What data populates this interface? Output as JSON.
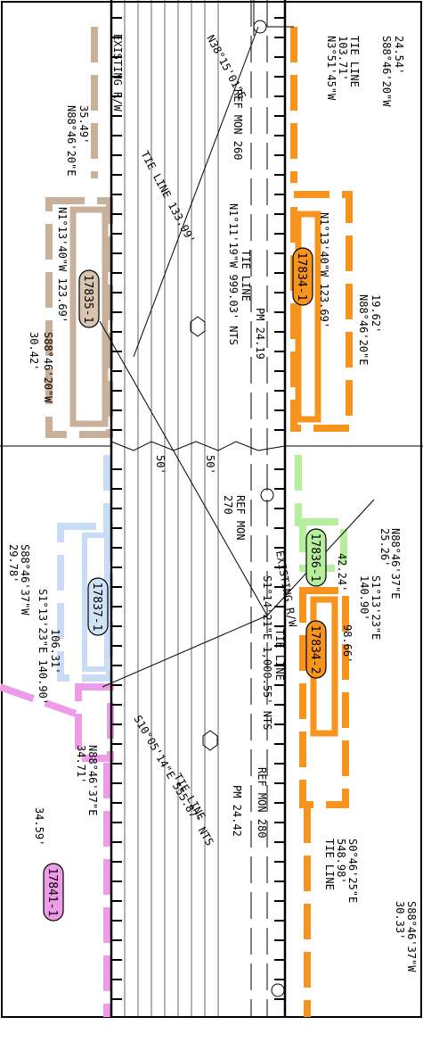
{
  "parcels": [
    "17835-1",
    "17834-1",
    "17836-1",
    "17834-2",
    "17837-1",
    "17841-1"
  ],
  "annotations": [
    [
      "EXISTING R/W"
    ],
    [
      "N88°46'20\"E",
      "35.49'"
    ],
    [
      "N38°15'01\"E"
    ],
    [
      "TIE LINE 133.99'"
    ],
    [
      "REF MON 260"
    ],
    [
      "N3°51'45\"W",
      "103.71'",
      "TIE LINE"
    ],
    [
      "S88°46'20\"W",
      "24.54'"
    ],
    [
      "N1°13'40\"W 123.69'"
    ],
    [
      "S88°46'20\"W",
      "30.42'"
    ],
    [
      "N1°11'19\"W 999.03' NTS"
    ],
    [
      "TIE LINE"
    ],
    [
      "PM 24.19"
    ],
    [
      "N1°13'40\"W 123.69'"
    ],
    [
      "N88°46'20\"E",
      "19.62'"
    ],
    [
      "50'"
    ],
    [
      "50'"
    ],
    [
      "REF MON",
      "270"
    ],
    [
      "N88°46'37\"E",
      "25.26'"
    ],
    [
      "42.24'"
    ],
    [
      "S1°13'23\"E",
      "140.90'"
    ],
    [
      "98.66'"
    ],
    [
      "EXISTING R/W"
    ],
    [
      "S1°14'21\"E 1,000.55' NTS"
    ],
    [
      "TIE LINE"
    ],
    [
      "REF MON 280"
    ],
    [
      "PM 24.42"
    ],
    [
      "S0°46'25\"E",
      "548.98'",
      "TIE LINE"
    ],
    [
      "S88°46'37\"W",
      "30.33'"
    ],
    [
      "S88°46'37\"W",
      "29.78'"
    ],
    [
      "106.31'"
    ],
    [
      "S1°13'23\"E 140.90'"
    ],
    [
      "S10°05'14\"E 555.87' NTS"
    ],
    [
      "TIE LINE"
    ],
    [
      "N88°46'37\"E",
      "34.71'"
    ],
    [
      "34.59'"
    ]
  ]
}
